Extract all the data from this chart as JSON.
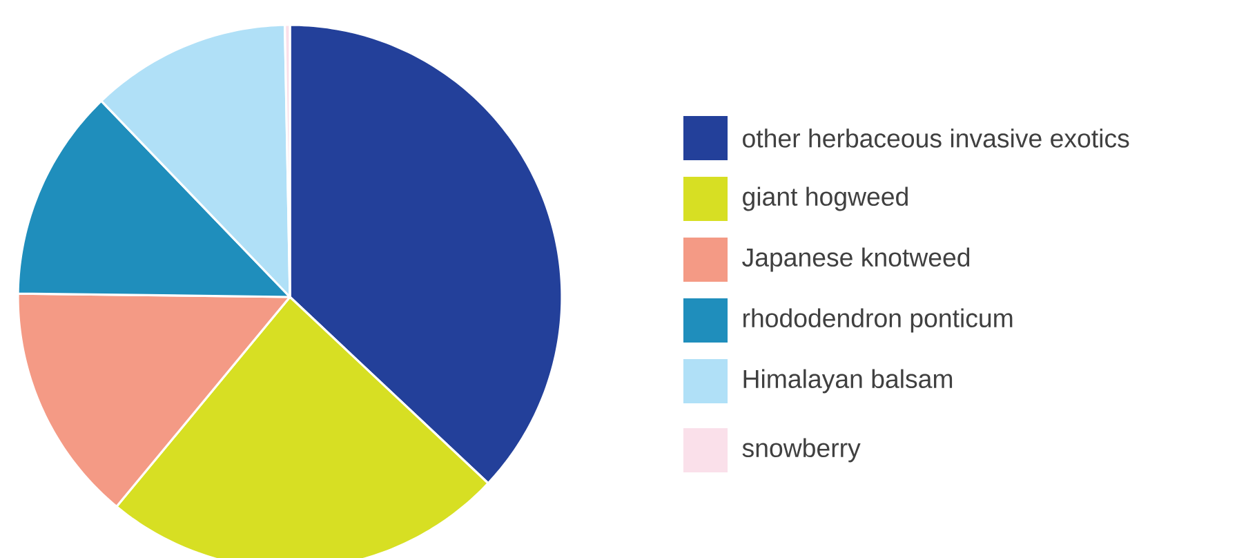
{
  "chart_data": {
    "type": "pie",
    "categories": [
      "other herbaceous invasive exotics",
      "giant hogweed",
      "Japanese knotweed",
      "rhododendron ponticum",
      "Himalayan balsam",
      "snowberry"
    ],
    "values": [
      37.0,
      24.0,
      14.2,
      12.6,
      11.9,
      0.3
    ],
    "colors": [
      "#23409a",
      "#d7df23",
      "#f49a85",
      "#1f8ebc",
      "#b0e0f7",
      "#fae0ea"
    ],
    "legend": "right"
  }
}
